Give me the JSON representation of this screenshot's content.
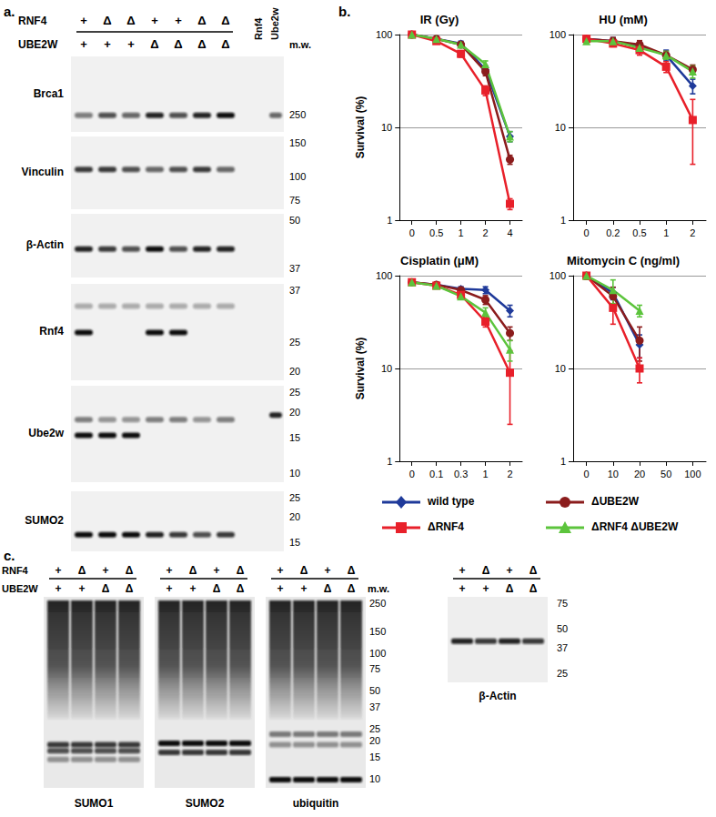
{
  "panel_labels": [
    "a.",
    "b.",
    "c."
  ],
  "blot_a": {
    "header_rows": [
      {
        "label": "RNF4",
        "lanes": [
          "+",
          "Δ",
          "Δ",
          "+",
          "+",
          "Δ",
          "Δ"
        ]
      },
      {
        "label": "UBE2W",
        "lanes": [
          "+",
          "+",
          "+",
          "Δ",
          "Δ",
          "Δ",
          "Δ"
        ]
      }
    ],
    "extra_lanes": [
      "Rnf4",
      "Ube2w"
    ],
    "mw_header": "m.w.",
    "rows": [
      {
        "label": "Brca1",
        "mw": [
          250
        ],
        "bands": [
          {
            "mw": 250,
            "intensity": [
              0.5,
              0.7,
              0.6,
              0.9,
              0.7,
              0.9,
              1,
              0,
              0.6
            ]
          }
        ]
      },
      {
        "label": "Vinculin",
        "mw": [
          150,
          100,
          75
        ],
        "bands": [
          {
            "mw": 110,
            "intensity": [
              0.8,
              0.8,
              0.7,
              0.6,
              0.7,
              0.8,
              0.6,
              0,
              0
            ]
          }
        ]
      },
      {
        "label": "β-Actin",
        "mw": [
          50,
          37
        ],
        "bands": [
          {
            "mw": 42,
            "intensity": [
              0.9,
              0.8,
              0.7,
              1,
              0.7,
              0.9,
              0.9,
              0,
              0
            ]
          }
        ]
      },
      {
        "label": "Rnf4",
        "mw": [
          37,
          25,
          20
        ],
        "bands": [
          {
            "mw": 33,
            "intensity": [
              0.3,
              0.3,
              0.3,
              0.3,
              0.3,
              0.3,
              0.3,
              0,
              0
            ]
          },
          {
            "mw": 27,
            "intensity": [
              1,
              0,
              0,
              1,
              1,
              0,
              0,
              0,
              0
            ]
          }
        ]
      },
      {
        "label": "Ube2w",
        "mw": [
          25,
          20,
          15,
          10
        ],
        "bands": [
          {
            "mw": 18.5,
            "intensity": [
              0.5,
              0.4,
              0.4,
              0.5,
              0.5,
              0.4,
              0.5,
              0,
              0
            ]
          },
          {
            "mw": 15.5,
            "intensity": [
              1,
              1,
              1,
              0,
              0,
              0,
              0,
              0,
              0
            ]
          },
          {
            "mw": 19.5,
            "intensity": [
              0,
              0,
              0,
              0,
              0,
              0,
              0,
              0,
              0.9
            ]
          }
        ]
      },
      {
        "label": "SUMO2",
        "mw": [
          25,
          20,
          15
        ],
        "bands": [
          {
            "mw": 16.5,
            "intensity": [
              1,
              1,
              1,
              0.9,
              0.8,
              0.7,
              0.8,
              0,
              0
            ]
          }
        ]
      }
    ]
  },
  "chart_data": [
    {
      "type": "line",
      "title": "IR (Gy)",
      "y_label": "Survival (%)",
      "log": "y",
      "grid": true,
      "categories": [
        "0",
        "0.5",
        "1",
        "2",
        "4"
      ],
      "ylim": [
        1,
        100
      ],
      "yticks": [
        1,
        10,
        100
      ],
      "series": [
        {
          "name": "wild type",
          "color": "#1f3a9a",
          "marker": "diamond",
          "values": [
            100,
            90,
            80,
            42,
            8
          ],
          "errors": [
            3,
            4,
            5,
            4,
            1
          ]
        },
        {
          "name": "ΔUBE2W",
          "color": "#8b1c1c",
          "marker": "circle",
          "values": [
            100,
            90,
            78,
            40,
            4.5
          ],
          "errors": [
            3,
            4,
            5,
            4,
            0.5
          ]
        },
        {
          "name": "ΔRNF4",
          "color": "#e8202a",
          "marker": "square",
          "values": [
            100,
            85,
            62,
            25,
            1.5
          ],
          "errors": [
            3,
            4,
            5,
            3,
            0.2
          ]
        },
        {
          "name": "ΔRNF4 ΔUBE2W",
          "color": "#5cc43c",
          "marker": "triangle",
          "values": [
            100,
            90,
            78,
            48,
            8
          ],
          "errors": [
            3,
            4,
            5,
            4,
            1
          ]
        }
      ]
    },
    {
      "type": "line",
      "title": "HU (mM)",
      "log": "y",
      "grid": true,
      "categories": [
        "0",
        "0.2",
        "0.5",
        "1",
        "2"
      ],
      "ylim": [
        1,
        100
      ],
      "yticks": [
        1,
        10,
        100
      ],
      "series": [
        {
          "name": "wild type",
          "color": "#1f3a9a",
          "marker": "diamond",
          "values": [
            90,
            85,
            75,
            60,
            28
          ],
          "errors": [
            4,
            8,
            8,
            8,
            5
          ]
        },
        {
          "name": "ΔUBE2W",
          "color": "#8b1c1c",
          "marker": "circle",
          "values": [
            90,
            85,
            78,
            60,
            42
          ],
          "errors": [
            4,
            8,
            8,
            6,
            5
          ]
        },
        {
          "name": "ΔRNF4",
          "color": "#e8202a",
          "marker": "square",
          "values": [
            90,
            80,
            68,
            45,
            12
          ],
          "errors": [
            4,
            6,
            8,
            6,
            8
          ]
        },
        {
          "name": "ΔRNF4 ΔUBE2W",
          "color": "#5cc43c",
          "marker": "triangle",
          "values": [
            85,
            85,
            72,
            60,
            40
          ],
          "errors": [
            5,
            5,
            6,
            6,
            6
          ]
        }
      ]
    },
    {
      "type": "line",
      "title": "Cisplatin (μM)",
      "y_label": "Survival (%)",
      "log": "y",
      "grid": true,
      "categories": [
        "0",
        "0.1",
        "0.3",
        "1",
        "2"
      ],
      "ylim": [
        1,
        100
      ],
      "yticks": [
        1,
        10,
        100
      ],
      "series": [
        {
          "name": "wild type",
          "color": "#1f3a9a",
          "marker": "diamond",
          "values": [
            85,
            80,
            72,
            70,
            42
          ],
          "errors": [
            4,
            4,
            4,
            6,
            6
          ]
        },
        {
          "name": "ΔUBE2W",
          "color": "#8b1c1c",
          "marker": "circle",
          "values": [
            85,
            80,
            70,
            55,
            24
          ],
          "errors": [
            4,
            4,
            4,
            6,
            4
          ]
        },
        {
          "name": "ΔRNF4",
          "color": "#e8202a",
          "marker": "square",
          "values": [
            85,
            78,
            62,
            32,
            9
          ],
          "errors": [
            4,
            4,
            4,
            4,
            6.5
          ]
        },
        {
          "name": "ΔRNF4 ΔUBE2W",
          "color": "#5cc43c",
          "marker": "triangle",
          "values": [
            85,
            78,
            60,
            40,
            16
          ],
          "errors": [
            4,
            4,
            4,
            5,
            4
          ]
        }
      ]
    },
    {
      "type": "line",
      "title": "Mitomycin C (ng/ml)",
      "log": "y",
      "grid": true,
      "categories": [
        "0",
        "10",
        "20",
        "50",
        "100"
      ],
      "ylim": [
        1,
        100
      ],
      "yticks": [
        1,
        10,
        100
      ],
      "series": [
        {
          "name": "wild type",
          "color": "#1f3a9a",
          "marker": "diamond",
          "values": [
            100,
            65,
            18,
            null,
            null
          ],
          "errors": [
            8,
            10,
            5,
            null,
            null
          ]
        },
        {
          "name": "ΔUBE2W",
          "color": "#8b1c1c",
          "marker": "circle",
          "values": [
            100,
            60,
            20,
            null,
            null
          ],
          "errors": [
            8,
            15,
            8,
            null,
            null
          ]
        },
        {
          "name": "ΔRNF4",
          "color": "#e8202a",
          "marker": "square",
          "values": [
            100,
            45,
            10,
            null,
            null
          ],
          "errors": [
            8,
            15,
            3,
            null,
            null
          ]
        },
        {
          "name": "ΔRNF4 ΔUBE2W",
          "color": "#5cc43c",
          "marker": "triangle",
          "values": [
            100,
            70,
            42,
            null,
            null
          ],
          "errors": [
            8,
            20,
            6,
            null,
            null
          ]
        }
      ]
    }
  ],
  "blot_c": {
    "header_rows": [
      {
        "label": "RNF4",
        "lanes": [
          "+",
          "Δ",
          "+",
          "Δ"
        ]
      },
      {
        "label": "UBE2W",
        "lanes": [
          "+",
          "+",
          "Δ",
          "Δ"
        ]
      }
    ],
    "mw_header": "m.w.",
    "mw": [
      250,
      150,
      100,
      75,
      50,
      37,
      25,
      20,
      15,
      10
    ],
    "blots": [
      {
        "label": "SUMO1",
        "kind": "smear",
        "bands": [
          {
            "mw": 19,
            "intensity": [
              0.8,
              0.8,
              0.8,
              0.8
            ]
          },
          {
            "mw": 17,
            "intensity": [
              0.7,
              0.7,
              0.7,
              0.7
            ]
          },
          {
            "mw": 14.5,
            "intensity": [
              0.4,
              0.4,
              0.4,
              0.4
            ]
          }
        ]
      },
      {
        "label": "SUMO2",
        "kind": "smear",
        "bands": [
          {
            "mw": 19.5,
            "intensity": [
              1,
              1,
              1,
              1
            ]
          },
          {
            "mw": 16.5,
            "intensity": [
              0.8,
              0.8,
              0.8,
              0.8
            ]
          }
        ]
      },
      {
        "label": "ubiquitin",
        "kind": "smear",
        "bands": [
          {
            "mw": 23,
            "intensity": [
              0.5,
              0.5,
              0.5,
              0.5
            ]
          },
          {
            "mw": 19,
            "intensity": [
              0.4,
              0.4,
              0.4,
              0.4
            ]
          },
          {
            "mw": 10,
            "intensity": [
              1,
              1,
              1,
              1
            ]
          }
        ]
      }
    ],
    "actin": {
      "label": "β-Actin",
      "kind": "band",
      "mw": [
        75,
        50,
        37,
        25
      ],
      "bands": [
        {
          "mw": 42,
          "intensity": [
            0.9,
            0.8,
            0.9,
            0.8
          ]
        }
      ]
    }
  }
}
